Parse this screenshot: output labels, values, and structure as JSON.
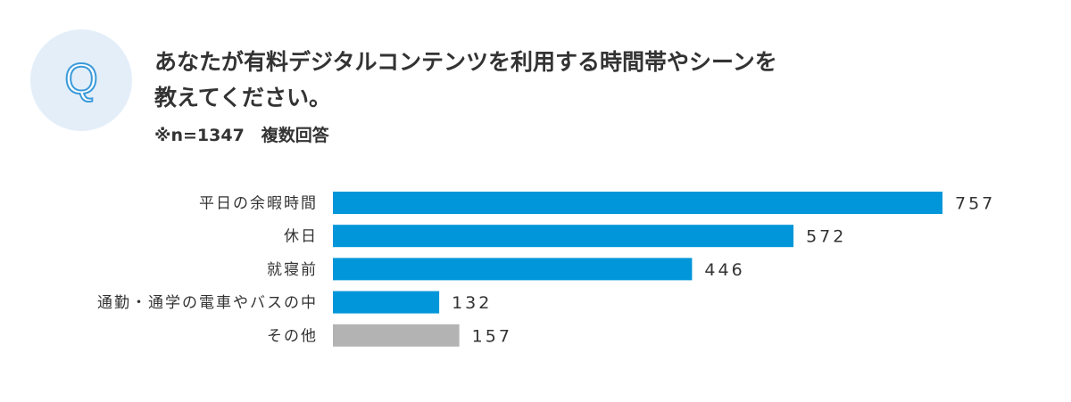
{
  "header": {
    "badge": "Q",
    "question_line1": "あなたが有料デジタルコンテンツを利用する時間帯やシーンを",
    "question_line2": "教えてください。",
    "sample": "※n=1347　複数回答"
  },
  "colors": {
    "bar_primary": "#0096d9",
    "bar_other": "#b3b3b3",
    "text": "#333333",
    "badge_bg": "#e3eef9",
    "badge_letter": "#3a9ad9"
  },
  "chart_data": {
    "type": "bar",
    "orientation": "horizontal",
    "categories": [
      "平日の余暇時間",
      "休日",
      "就寝前",
      "通勤・通学の電車やバスの中",
      "その他"
    ],
    "values": [
      757,
      572,
      446,
      132,
      157
    ],
    "bar_colors": [
      "#0096d9",
      "#0096d9",
      "#0096d9",
      "#0096d9",
      "#b3b3b3"
    ],
    "xlim": [
      0,
      757
    ],
    "grid": false,
    "legend": "none"
  }
}
